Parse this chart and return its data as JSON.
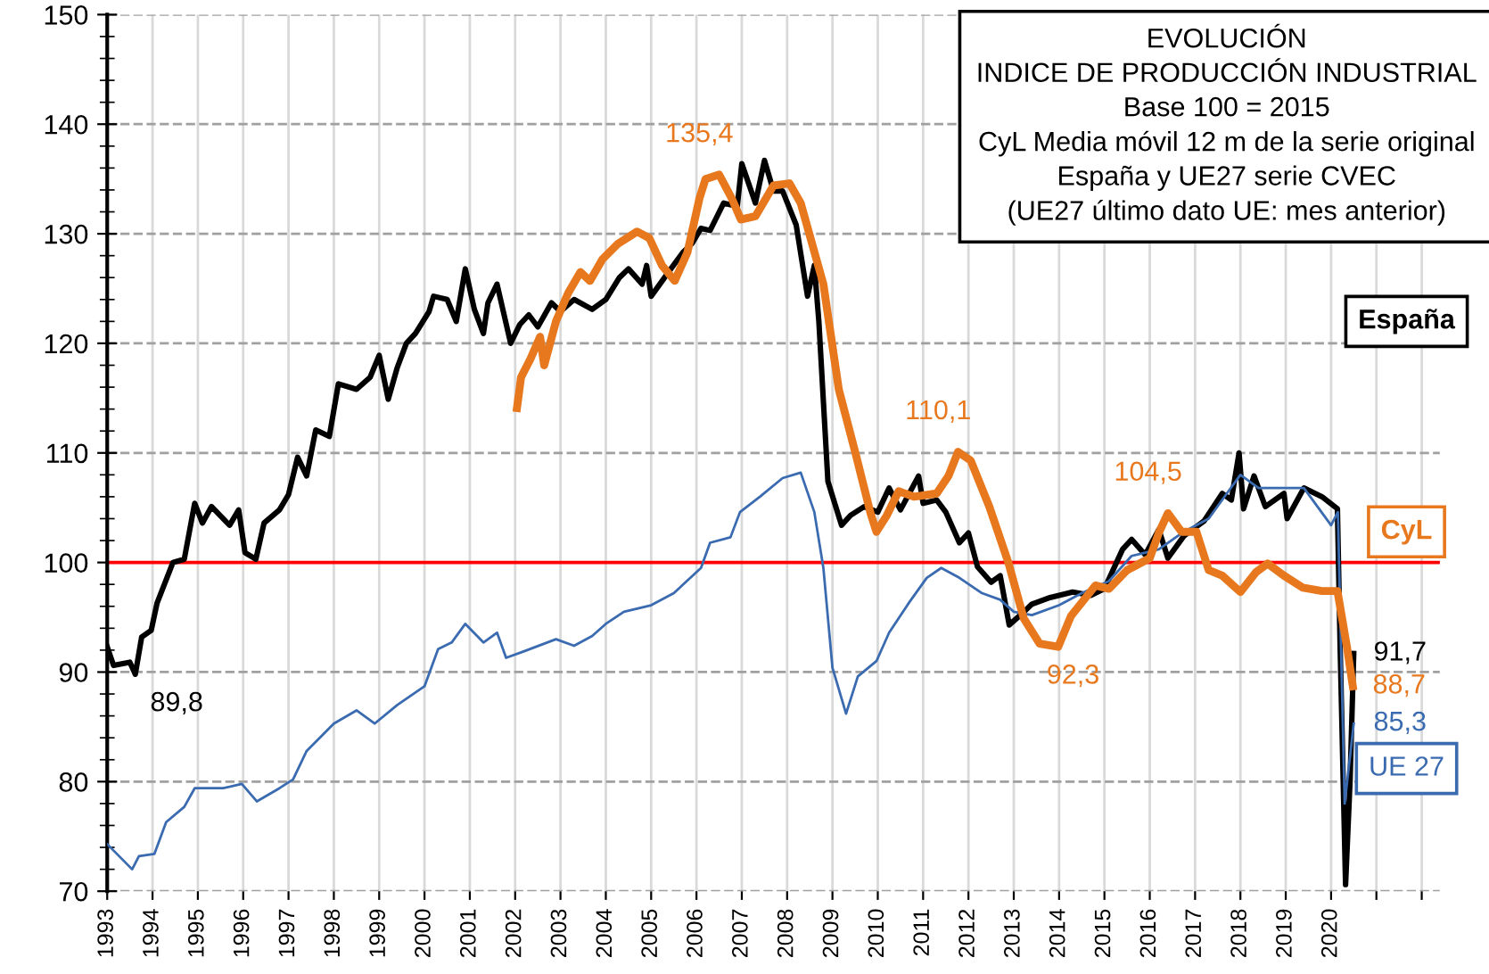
{
  "chart_data": {
    "type": "line",
    "title": "EVOLUCIÓN",
    "subtitle": "INDICE DE PRODUCCIÓN INDUSTRIAL\nBase 100 = 2015\nCyL Media móvil 12 m de la serie original\nEspaña y UE27 serie CVEC\n(UE27 último dato UE: mes anterior)",
    "xlim": [
      1993,
      2022.4
    ],
    "xticks": [
      1993,
      1994,
      1995,
      1996,
      1997,
      1998,
      1999,
      2000,
      2001,
      2002,
      2003,
      2004,
      2005,
      2006,
      2007,
      2008,
      2009,
      2010,
      2011,
      2012,
      2013,
      2014,
      2015,
      2016,
      2017,
      2018,
      2019,
      2020,
      {
        "value": 2021,
        "label": null
      },
      {
        "value": 2022,
        "label": null
      }
    ],
    "ylim": [
      70,
      150
    ],
    "yticks": [
      70,
      80,
      90,
      100,
      110,
      120,
      130,
      140,
      150
    ],
    "grid": true,
    "legend": false,
    "marker": "none",
    "line_style": "solid",
    "ref_lines": [
      {
        "axis": "y",
        "value": 100,
        "color": "#ff0000"
      }
    ],
    "series": [
      {
        "name": "España",
        "color": "#000000",
        "x": [
          1993.0,
          1993.14,
          1993.5,
          1993.62,
          1993.76,
          1993.97,
          1994.1,
          1994.45,
          1994.7,
          1994.93,
          1995.1,
          1995.3,
          1995.7,
          1995.9,
          1996.04,
          1996.28,
          1996.46,
          1996.8,
          1997.0,
          1997.2,
          1997.4,
          1997.6,
          1997.9,
          1998.1,
          1998.5,
          1998.8,
          1999.0,
          1999.2,
          1999.4,
          1999.6,
          1999.8,
          2000.1,
          2000.2,
          2000.5,
          2000.7,
          2000.9,
          2001.1,
          2001.3,
          2001.4,
          2001.6,
          2001.9,
          2002.1,
          2002.3,
          2002.5,
          2002.8,
          2003.0,
          2003.3,
          2003.7,
          2004.0,
          2004.3,
          2004.5,
          2004.8,
          2004.9,
          2005.0,
          2005.4,
          2005.7,
          2005.9,
          2006.1,
          2006.3,
          2006.6,
          2006.9,
          2007.0,
          2007.3,
          2007.5,
          2007.7,
          2007.9,
          2008.2,
          2008.45,
          2008.6,
          2008.7,
          2008.9,
          2009.2,
          2009.4,
          2009.7,
          2010.0,
          2010.25,
          2010.5,
          2010.9,
          2011.0,
          2011.3,
          2011.5,
          2011.8,
          2012.0,
          2012.2,
          2012.5,
          2012.7,
          2012.9,
          2013.2,
          2013.4,
          2013.8,
          2014.3,
          2014.7,
          2015.0,
          2015.4,
          2015.6,
          2015.9,
          2016.2,
          2016.4,
          2016.75,
          2017.2,
          2017.6,
          2017.8,
          2017.97,
          2018.07,
          2018.3,
          2018.55,
          2018.96,
          2019.03,
          2019.4,
          2019.8,
          2020.14,
          2020.2,
          2020.32,
          2020.42,
          2020.5
        ],
        "values": [
          92.3,
          90.6,
          90.9,
          89.8,
          93.2,
          93.8,
          96.3,
          100,
          100.3,
          105.4,
          103.6,
          105.1,
          103.4,
          104.8,
          100.9,
          100.3,
          103.6,
          104.8,
          106.2,
          109.6,
          107.9,
          112.1,
          111.5,
          116.3,
          115.8,
          116.9,
          118.9,
          114.9,
          117.8,
          120.0,
          120.9,
          122.9,
          124.3,
          124.0,
          122.0,
          126.8,
          123.1,
          120.9,
          123.7,
          125.4,
          120.0,
          121.7,
          122.6,
          121.5,
          123.7,
          122.9,
          124.0,
          123.1,
          124.0,
          126.0,
          126.8,
          125.4,
          127.1,
          124.3,
          126.6,
          128.3,
          129.1,
          130.5,
          130.3,
          132.8,
          132.5,
          136.4,
          132.8,
          136.7,
          133.9,
          133.9,
          130.8,
          124.3,
          127.1,
          122.0,
          107.4,
          103.4,
          104.3,
          105.1,
          104.6,
          106.8,
          104.8,
          107.9,
          105.4,
          105.7,
          104.6,
          101.8,
          102.7,
          99.6,
          98.2,
          98.8,
          94.3,
          95.4,
          96.2,
          96.8,
          97.3,
          97.0,
          97.6,
          101.2,
          102.1,
          100.7,
          103.0,
          100.4,
          102.4,
          103.8,
          106.3,
          105.7,
          110.0,
          104.9,
          107.9,
          105.1,
          106.3,
          104.0,
          106.8,
          106.0,
          104.9,
          92.3,
          70.6,
          80.2,
          91.7
        ]
      },
      {
        "name": "CyL",
        "color": "#e8781e",
        "x": [
          2002.04,
          2002.13,
          2002.34,
          2002.55,
          2002.64,
          2002.9,
          2003.17,
          2003.44,
          2003.65,
          2003.93,
          2004.27,
          2004.69,
          2004.96,
          2005.24,
          2005.52,
          2005.8,
          2006.07,
          2006.2,
          2006.5,
          2006.77,
          2006.98,
          2007.3,
          2007.7,
          2008.05,
          2008.3,
          2008.8,
          2009.14,
          2009.5,
          2009.84,
          2009.97,
          2010.2,
          2010.46,
          2010.8,
          2011.3,
          2011.56,
          2011.77,
          2012.05,
          2012.46,
          2012.88,
          2013.22,
          2013.57,
          2013.98,
          2014.26,
          2014.8,
          2015.1,
          2015.5,
          2016.0,
          2016.2,
          2016.4,
          2016.7,
          2017.03,
          2017.3,
          2017.6,
          2018.0,
          2018.34,
          2018.6,
          2018.96,
          2019.38,
          2019.8,
          2020.14,
          2020.35,
          2020.48
        ],
        "values": [
          114.1,
          116.9,
          118.6,
          120.6,
          118.0,
          122.0,
          124.6,
          126.5,
          125.7,
          127.7,
          129.1,
          130.2,
          129.6,
          127.1,
          125.7,
          128.3,
          133.3,
          135.0,
          135.4,
          133.3,
          131.3,
          131.6,
          134.4,
          134.6,
          132.8,
          125.4,
          115.8,
          110.1,
          104.5,
          102.8,
          104.3,
          106.5,
          106.0,
          106.3,
          107.9,
          110.1,
          109.3,
          105.1,
          100.0,
          94.9,
          92.6,
          92.3,
          95.1,
          97.9,
          97.6,
          99.3,
          100.4,
          102.7,
          104.5,
          102.8,
          102.8,
          99.3,
          98.8,
          97.3,
          99.1,
          99.9,
          98.8,
          97.7,
          97.4,
          97.4,
          92.3,
          88.7
        ]
      },
      {
        "name": "UE 27",
        "color": "#3a6ab0",
        "x": [
          1993.0,
          1993.55,
          1993.7,
          1994.04,
          1994.3,
          1994.7,
          1994.93,
          1995.56,
          1995.97,
          1996.3,
          1996.8,
          1997.1,
          1997.4,
          1998.0,
          1998.5,
          1998.9,
          1999.4,
          2000.0,
          2000.3,
          2000.6,
          2000.9,
          2001.3,
          2001.6,
          2001.8,
          2002.2,
          2002.9,
          2003.3,
          2003.7,
          2004.0,
          2004.4,
          2005.0,
          2005.5,
          2006.1,
          2006.3,
          2006.75,
          2006.96,
          2007.4,
          2007.9,
          2008.3,
          2008.6,
          2008.8,
          2009.0,
          2009.3,
          2009.56,
          2009.97,
          2010.25,
          2010.7,
          2011.08,
          2011.4,
          2011.8,
          2012.3,
          2012.7,
          2013.0,
          2013.4,
          2014.0,
          2014.5,
          2015.1,
          2015.6,
          2016.2,
          2016.75,
          2017.3,
          2017.7,
          2018.0,
          2018.4,
          2019.0,
          2019.4,
          2020.0,
          2020.15,
          2020.3,
          2020.5
        ],
        "values": [
          74.3,
          72.0,
          73.2,
          73.4,
          76.3,
          77.7,
          79.4,
          79.4,
          79.8,
          78.2,
          79.4,
          80.2,
          82.8,
          85.3,
          86.5,
          85.3,
          87.0,
          88.7,
          92.1,
          92.7,
          94.4,
          92.7,
          93.6,
          91.3,
          91.9,
          93.0,
          92.4,
          93.3,
          94.4,
          95.5,
          96.1,
          97.2,
          99.5,
          101.8,
          102.3,
          104.6,
          106.0,
          107.7,
          108.2,
          104.6,
          99.5,
          90.4,
          86.2,
          89.6,
          91.0,
          93.6,
          96.4,
          98.6,
          99.5,
          98.6,
          97.2,
          96.6,
          95.5,
          95.2,
          96.1,
          97.2,
          98.3,
          100.6,
          101.2,
          102.8,
          104.0,
          106.3,
          108.0,
          106.8,
          106.8,
          106.8,
          103.4,
          104.6,
          78.0,
          85.3
        ]
      }
    ],
    "annotations": [
      {
        "text": "89,8",
        "x": 1993.62,
        "y": 89.8
      },
      {
        "text": "135,4",
        "x": 2006.5,
        "y": 135.4
      },
      {
        "text": "110,1",
        "x": 2011.77,
        "y": 110.1
      },
      {
        "text": "92,3",
        "x": 2013.98,
        "y": 92.3
      },
      {
        "text": "104,5",
        "x": 2016.4,
        "y": 104.5
      },
      {
        "text": "91,7",
        "x": 2020.5,
        "y": 91.7
      },
      {
        "text": "88,7",
        "x": 2020.48,
        "y": 88.7
      },
      {
        "text": "85,3",
        "x": 2020.5,
        "y": 85.3
      }
    ]
  }
}
